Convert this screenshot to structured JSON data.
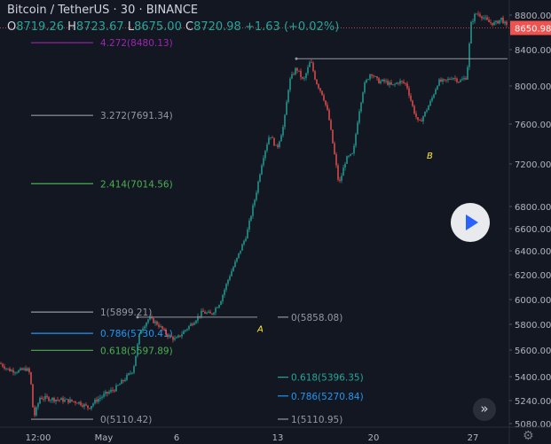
{
  "header": {
    "symbol_line": "Bitcoin / TetherUS · 30 · BINANCE",
    "o_label": "O",
    "o_value": "8719.26",
    "h_label": "H",
    "h_value": "8723.67",
    "l_label": "L",
    "l_value": "8675.00",
    "c_label": "C",
    "c_value": "8720.98",
    "change": "+1.63 (+0.02%)"
  },
  "colors": {
    "background": "#131722",
    "up": "#26a69a",
    "down": "#ef5350",
    "fib_gray": "#9598a1",
    "fib_purple": "#9c27b0",
    "fib_green": "#4caf50",
    "fib_blue": "#2196f3",
    "fib_teal": "#26a69a",
    "price_badge": "#ef5350",
    "label_yellow": "#ffeb3b"
  },
  "icons": {
    "play": "play-icon",
    "scroll": "double-chevron-right-icon",
    "settings": "gear-icon"
  },
  "chart_data": {
    "type": "candlestick",
    "title": "Bitcoin / TetherUS · 30 · BINANCE",
    "ylim": [
      5060,
      8960
    ],
    "y_ticks": [
      8800,
      8400,
      8000,
      7600,
      7200,
      6800,
      6600,
      6400,
      6200,
      6000,
      5800,
      5600,
      5400,
      5240,
      5080
    ],
    "y_tick_labels": [
      "8800.00",
      "8400.00",
      "8000.00",
      "7600.00",
      "7200.00",
      "6800.00",
      "6600.00",
      "6400.00",
      "6200.00",
      "6000.00",
      "5800.00",
      "5600.00",
      "5400.00",
      "5240.00",
      "5080.00"
    ],
    "x_ticks": [
      "12:00",
      "May",
      "6",
      "13",
      "20",
      "27"
    ],
    "last_price": 8650.98,
    "last_price_label": "8650.98",
    "price_path": [
      [
        0,
        5500
      ],
      [
        10,
        5450
      ],
      [
        20,
        5440
      ],
      [
        30,
        5460
      ],
      [
        34,
        5420
      ],
      [
        38,
        5120
      ],
      [
        45,
        5260
      ],
      [
        60,
        5250
      ],
      [
        75,
        5240
      ],
      [
        88,
        5230
      ],
      [
        100,
        5190
      ],
      [
        108,
        5240
      ],
      [
        118,
        5280
      ],
      [
        130,
        5320
      ],
      [
        140,
        5380
      ],
      [
        150,
        5450
      ],
      [
        158,
        5750
      ],
      [
        168,
        5850
      ],
      [
        178,
        5800
      ],
      [
        188,
        5720
      ],
      [
        198,
        5680
      ],
      [
        208,
        5750
      ],
      [
        218,
        5820
      ],
      [
        228,
        5900
      ],
      [
        238,
        5880
      ],
      [
        248,
        5980
      ],
      [
        258,
        6180
      ],
      [
        268,
        6350
      ],
      [
        278,
        6550
      ],
      [
        288,
        6900
      ],
      [
        296,
        7250
      ],
      [
        304,
        7500
      ],
      [
        312,
        7350
      ],
      [
        320,
        7600
      ],
      [
        326,
        8050
      ],
      [
        334,
        8200
      ],
      [
        342,
        8050
      ],
      [
        350,
        8280
      ],
      [
        356,
        8050
      ],
      [
        364,
        7900
      ],
      [
        370,
        7700
      ],
      [
        376,
        7350
      ],
      [
        382,
        7000
      ],
      [
        390,
        7250
      ],
      [
        398,
        7300
      ],
      [
        404,
        7700
      ],
      [
        410,
        8000
      ],
      [
        418,
        8150
      ],
      [
        426,
        8050
      ],
      [
        434,
        8050
      ],
      [
        442,
        8000
      ],
      [
        450,
        8050
      ],
      [
        458,
        8020
      ],
      [
        466,
        7750
      ],
      [
        472,
        7600
      ],
      [
        478,
        7700
      ],
      [
        486,
        7850
      ],
      [
        494,
        8050
      ],
      [
        502,
        8050
      ],
      [
        510,
        8100
      ],
      [
        518,
        8050
      ],
      [
        526,
        8100
      ],
      [
        531,
        8700
      ],
      [
        536,
        8820
      ],
      [
        542,
        8800
      ],
      [
        550,
        8720
      ],
      [
        558,
        8700
      ],
      [
        565,
        8760
      ],
      [
        572,
        8651
      ]
    ],
    "horizontal_lines": [
      {
        "price": 5858.08,
        "x_start": 155,
        "x_end": 290,
        "color": "#9598a1"
      },
      {
        "price": 8300,
        "x_start": 334,
        "x_end": 572,
        "color": "#9598a1"
      }
    ],
    "fib_left": {
      "x_start": 35,
      "x_end": 105,
      "levels": [
        {
          "label": "4.272(8480.13)",
          "price": 8480.13,
          "color": "#9c27b0"
        },
        {
          "label": "3.272(7691.34)",
          "price": 7691.34,
          "color": "#9598a1"
        },
        {
          "label": "2.414(7014.56)",
          "price": 7014.56,
          "color": "#4caf50"
        },
        {
          "label": "1(5899.21)",
          "price": 5899.21,
          "color": "#9598a1"
        },
        {
          "label": "0.786(5730.41)",
          "price": 5730.41,
          "color": "#2196f3"
        },
        {
          "label": "0.618(5597.89)",
          "price": 5597.89,
          "color": "#4caf50"
        },
        {
          "label": "0(5110.42)",
          "price": 5110.42,
          "color": "#9598a1"
        }
      ]
    },
    "fib_right": {
      "x_start": 313,
      "x_end": 325,
      "levels": [
        {
          "label": "0(5858.08)",
          "price": 5858.08,
          "color": "#9598a1"
        },
        {
          "label": "0.618(5396.35)",
          "price": 5396.35,
          "color": "#26a69a"
        },
        {
          "label": "0.786(5270.84)",
          "price": 5270.84,
          "color": "#2196f3"
        },
        {
          "label": "1(5110.95)",
          "price": 5110.95,
          "color": "#9598a1"
        }
      ]
    },
    "annotations": [
      {
        "text": "A",
        "x": 290,
        "price": 5740
      },
      {
        "text": "B",
        "x": 481,
        "price": 7255
      }
    ]
  }
}
